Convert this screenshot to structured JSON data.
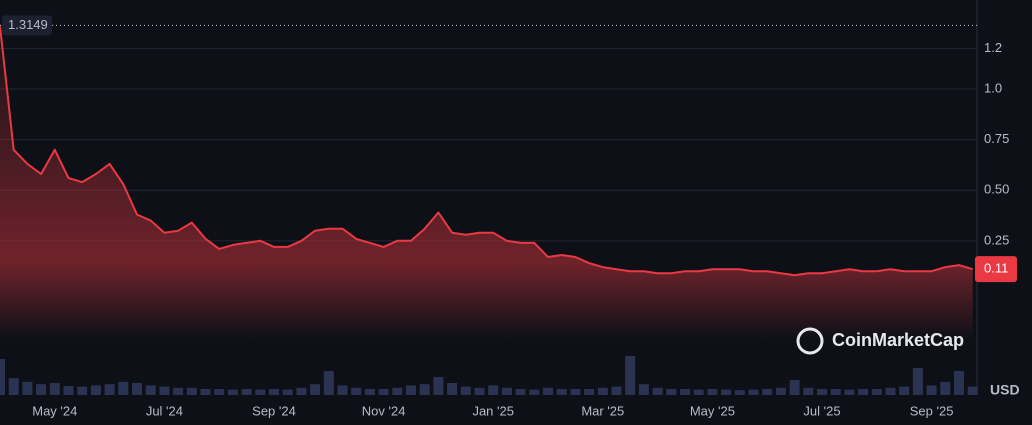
{
  "chart_data": {
    "type": "line",
    "categories": [
      null,
      null,
      null,
      null,
      "May '24",
      null,
      null,
      null,
      null,
      null,
      null,
      null,
      "Jul '24",
      null,
      null,
      null,
      null,
      null,
      null,
      null,
      "Sep '24",
      null,
      null,
      null,
      null,
      null,
      null,
      null,
      "Nov '24",
      null,
      null,
      null,
      null,
      null,
      null,
      null,
      "Jan '25",
      null,
      null,
      null,
      null,
      null,
      null,
      null,
      "Mar '25",
      null,
      null,
      null,
      null,
      null,
      null,
      null,
      "May '25",
      null,
      null,
      null,
      null,
      null,
      null,
      null,
      "Jul '25",
      null,
      null,
      null,
      null,
      null,
      null,
      null,
      "Sep '25",
      null,
      null,
      null
    ],
    "values": [
      1.31,
      0.7,
      0.63,
      0.58,
      0.7,
      0.56,
      0.54,
      0.58,
      0.63,
      0.53,
      0.38,
      0.35,
      0.29,
      0.3,
      0.34,
      0.26,
      0.21,
      0.23,
      0.24,
      0.25,
      0.22,
      0.22,
      0.25,
      0.3,
      0.31,
      0.31,
      0.26,
      0.24,
      0.22,
      0.25,
      0.25,
      0.31,
      0.39,
      0.29,
      0.28,
      0.29,
      0.29,
      0.25,
      0.24,
      0.24,
      0.17,
      0.18,
      0.17,
      0.14,
      0.12,
      0.11,
      0.1,
      0.1,
      0.09,
      0.09,
      0.1,
      0.1,
      0.11,
      0.11,
      0.11,
      0.1,
      0.1,
      0.09,
      0.08,
      0.09,
      0.09,
      0.1,
      0.11,
      0.1,
      0.1,
      0.11,
      0.1,
      0.1,
      0.1,
      0.12,
      0.13,
      0.11
    ],
    "color": "#ea3943",
    "ylim": [
      -0.24,
      1.44
    ],
    "yticks": [
      0.25,
      {
        "value": 0.5,
        "label": "0.50"
      },
      0.75,
      {
        "value": 1,
        "label": "1.0"
      },
      1.2
    ],
    "grid": true,
    "high_price": 1.3149,
    "current_price": 0.11,
    "volume": [
      60,
      28,
      22,
      18,
      20,
      15,
      14,
      16,
      18,
      22,
      20,
      16,
      14,
      12,
      12,
      10,
      10,
      9,
      10,
      9,
      10,
      9,
      12,
      18,
      40,
      16,
      12,
      10,
      10,
      12,
      16,
      18,
      30,
      20,
      14,
      12,
      16,
      12,
      10,
      9,
      12,
      10,
      10,
      10,
      12,
      14,
      65,
      18,
      12,
      10,
      10,
      9,
      10,
      9,
      8,
      9,
      10,
      12,
      25,
      12,
      10,
      10,
      9,
      10,
      10,
      12,
      14,
      45,
      16,
      22,
      40,
      14
    ],
    "volume_ylim": [
      0,
      100
    ],
    "watermark": "CoinMarketCap",
    "currency": "USD"
  }
}
